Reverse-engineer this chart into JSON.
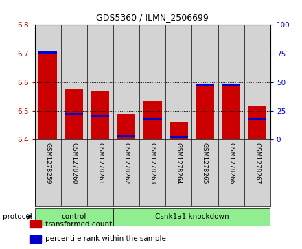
{
  "title": "GDS5360 / ILMN_2506699",
  "samples": [
    "GSM1278259",
    "GSM1278260",
    "GSM1278261",
    "GSM1278262",
    "GSM1278263",
    "GSM1278264",
    "GSM1278265",
    "GSM1278266",
    "GSM1278267"
  ],
  "transformed_count": [
    6.71,
    6.575,
    6.57,
    6.49,
    6.535,
    6.46,
    6.595,
    6.595,
    6.515
  ],
  "percentile_rank": [
    76,
    22,
    20,
    3,
    18,
    2,
    48,
    48,
    18
  ],
  "bar_bottom": 6.4,
  "ylim_left": [
    6.4,
    6.8
  ],
  "ylim_right": [
    0,
    100
  ],
  "yticks_left": [
    6.4,
    6.5,
    6.6,
    6.7,
    6.8
  ],
  "yticks_right": [
    0,
    25,
    50,
    75,
    100
  ],
  "bar_color_red": "#cc0000",
  "bar_color_blue": "#0000cc",
  "bar_width": 0.7,
  "protocol_groups": [
    {
      "label": "control",
      "start": 0,
      "end": 3
    },
    {
      "label": "Csnk1a1 knockdown",
      "start": 3,
      "end": 9
    }
  ],
  "protocol_label": "protocol",
  "bg_color_bars": "#d3d3d3",
  "legend_items": [
    {
      "label": "transformed count",
      "color": "#cc0000"
    },
    {
      "label": "percentile rank within the sample",
      "color": "#0000cc"
    }
  ]
}
